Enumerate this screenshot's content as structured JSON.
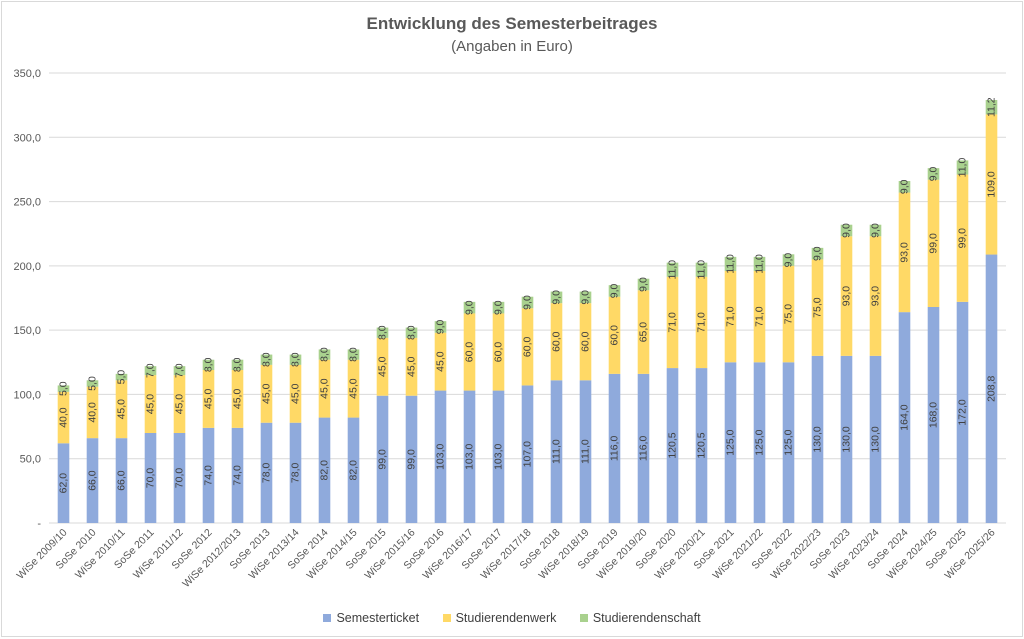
{
  "chart_data": {
    "type": "bar",
    "stacked": true,
    "title": "Entwicklung des Semesterbeitrages",
    "subtitle": "(Angaben in Euro)",
    "ylim": [
      0,
      350
    ],
    "yticks": [
      "-",
      "50,0",
      "100,0",
      "150,0",
      "200,0",
      "250,0",
      "300,0",
      "350,0"
    ],
    "grid": true,
    "legend_position": "bottom",
    "categories": [
      "WiSe 2009/10",
      "SoSe 2010",
      "WiSe 2010/11",
      "SoSe 2011",
      "WiSe 2011/12",
      "SoSe 2012",
      "WiSe 2012/2013",
      "SoSe 2013",
      "WiSe 2013/14",
      "SoSe 2014",
      "WiSe 2014/15",
      "SoSe 2015",
      "WiSe 2015/16",
      "SoSe 2016",
      "WiSe 2016/17",
      "SoSe 2017",
      "WiSe 2017/18",
      "SoSe 2018",
      "WiSe 2018/19",
      "SoSe 2019",
      "WiSe 2019/20",
      "SoSe 2020",
      "WiSe 2020/21",
      "SoSe 2021",
      "WiSe 2021/22",
      "SoSe 2022",
      "WiSe 2022/23",
      "SoSe 2023",
      "WiSe 2023/24",
      "SoSe 2024",
      "WiSe 2024/25",
      "SoSe 2025",
      "WiSe 2025/26"
    ],
    "series": [
      {
        "name": "Semesterticket",
        "color": "#8faadc",
        "values": [
          62,
          66,
          66,
          70,
          70,
          74,
          74,
          78,
          78,
          82,
          82,
          99,
          99,
          103,
          103,
          103,
          107,
          111,
          111,
          116,
          116,
          120.5,
          120.5,
          125,
          125,
          125,
          130,
          130,
          130,
          164,
          168,
          172,
          208.8
        ],
        "labels": [
          "62,0",
          "66,0",
          "66,0",
          "70,0",
          "70,0",
          "74,0",
          "74,0",
          "78,0",
          "78,0",
          "82,0",
          "82,0",
          "99,0",
          "99,0",
          "103,0",
          "103,0",
          "103,0",
          "107,0",
          "111,0",
          "111,0",
          "116,0",
          "116,0",
          "120,5",
          "120,5",
          "125,0",
          "125,0",
          "125,0",
          "130,0",
          "130,0",
          "130,0",
          "164,0",
          "168,0",
          "172,0",
          "208,8"
        ]
      },
      {
        "name": "Studierendenwerk",
        "color": "#ffd966",
        "values": [
          40,
          40,
          45,
          45,
          45,
          45,
          45,
          45,
          45,
          45,
          45,
          45,
          45,
          45,
          60,
          60,
          60,
          60,
          60,
          60,
          65,
          71,
          71,
          71,
          71,
          75,
          75,
          93,
          93,
          93,
          99,
          99,
          109
        ],
        "labels": [
          "40,0",
          "40,0",
          "45,0",
          "45,0",
          "45,0",
          "45,0",
          "45,0",
          "45,0",
          "45,0",
          "45,0",
          "45,0",
          "45,0",
          "45,0",
          "45,0",
          "60,0",
          "60,0",
          "60,0",
          "60,0",
          "60,0",
          "60,0",
          "65,0",
          "71,0",
          "71,0",
          "71,0",
          "71,0",
          "75,0",
          "75,0",
          "93,0",
          "93,0",
          "93,0",
          "99,0",
          "99,0",
          "109,0"
        ]
      },
      {
        "name": "Studierendenschaft",
        "color": "#a9d18e",
        "values": [
          5,
          5,
          5,
          7,
          7,
          8,
          8,
          8,
          8,
          8,
          8,
          8,
          8,
          9,
          9,
          9,
          9,
          9,
          9,
          9,
          9,
          11,
          11,
          11,
          11,
          9,
          9,
          9,
          9,
          9,
          9,
          11,
          11.2
        ],
        "labels": [
          "5,0",
          "5,0",
          "5,0",
          "7,0",
          "7,0",
          "8,0",
          "8,0",
          "8,0",
          "8,0",
          "8,0",
          "8,0",
          "8,0",
          "8,0",
          "9,0",
          "9,0",
          "9,0",
          "9,0",
          "9,0",
          "9,0",
          "9,0",
          "9,0",
          "11,0",
          "11,0",
          "11,0",
          "11,0",
          "9,0",
          "9,0",
          "9,0",
          "9,0",
          "9,0",
          "9,0",
          "11,0",
          "11,2"
        ]
      }
    ]
  }
}
